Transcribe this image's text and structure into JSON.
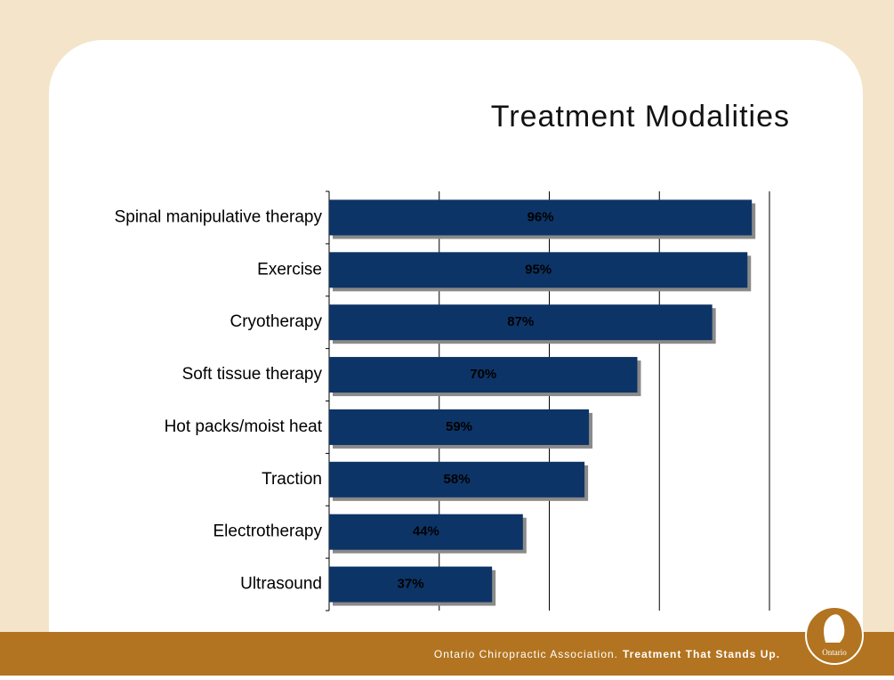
{
  "chart_data": {
    "type": "bar",
    "orientation": "horizontal",
    "title": "Treatment Modalities",
    "categories": [
      "Spinal manipulative therapy",
      "Exercise",
      "Cryotherapy",
      "Soft tissue therapy",
      "Hot packs/moist heat",
      "Traction",
      "Electrotherapy",
      "Ultrasound"
    ],
    "values": [
      96,
      95,
      87,
      70,
      59,
      58,
      44,
      37
    ],
    "value_labels": [
      "96%",
      "95%",
      "87%",
      "70%",
      "59%",
      "58%",
      "44%",
      "37%"
    ],
    "color": "#0d3466",
    "xlim": [
      0,
      100
    ],
    "xticks": [
      0,
      25,
      50,
      75,
      100
    ],
    "grid": true
  },
  "footer": {
    "text": "Ontario Chiropractic Association.",
    "tagline": "Treatment That Stands Up.",
    "logo": "Ontario"
  }
}
